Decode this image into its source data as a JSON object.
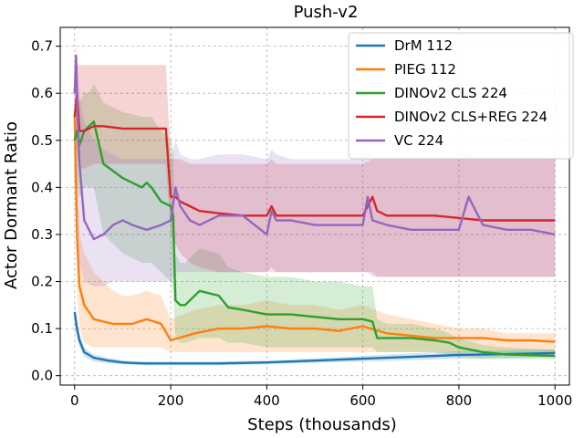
{
  "chart_data": {
    "type": "line",
    "title": "Push-v2",
    "xlabel": "Steps (thousands)",
    "ylabel": "Actor Dormant Ratio",
    "xlim": [
      -30,
      1030
    ],
    "ylim": [
      -0.02,
      0.74
    ],
    "xticks": [
      0,
      200,
      400,
      600,
      800,
      1000
    ],
    "xtick_labels": [
      "0",
      "200",
      "400",
      "600",
      "800",
      "1000"
    ],
    "yticks": [
      0.0,
      0.1,
      0.2,
      0.3,
      0.4,
      0.5,
      0.6,
      0.7
    ],
    "ytick_labels": [
      "0.0",
      "0.1",
      "0.2",
      "0.3",
      "0.4",
      "0.5",
      "0.6",
      "0.7"
    ],
    "grid": true,
    "legend_position": "top-right",
    "series": [
      {
        "name": "DrM 112",
        "color": "#1f77b4",
        "x": [
          0,
          5,
          10,
          20,
          40,
          70,
          100,
          120,
          150,
          200,
          300,
          400,
          500,
          600,
          700,
          800,
          900,
          1000
        ],
        "y": [
          0.135,
          0.1,
          0.075,
          0.05,
          0.038,
          0.032,
          0.028,
          0.027,
          0.026,
          0.026,
          0.026,
          0.028,
          0.032,
          0.036,
          0.04,
          0.044,
          0.046,
          0.048
        ],
        "lower": [
          0.1,
          0.08,
          0.06,
          0.04,
          0.03,
          0.026,
          0.024,
          0.023,
          0.022,
          0.022,
          0.022,
          0.024,
          0.027,
          0.03,
          0.033,
          0.036,
          0.038,
          0.04
        ],
        "upper": [
          0.16,
          0.12,
          0.09,
          0.06,
          0.045,
          0.038,
          0.033,
          0.031,
          0.03,
          0.03,
          0.03,
          0.032,
          0.037,
          0.042,
          0.047,
          0.052,
          0.054,
          0.056
        ]
      },
      {
        "name": "PIEG 112",
        "color": "#ff7f0e",
        "x": [
          0,
          5,
          10,
          20,
          40,
          60,
          80,
          100,
          120,
          150,
          180,
          200,
          250,
          300,
          350,
          400,
          450,
          500,
          550,
          600,
          650,
          700,
          750,
          800,
          850,
          900,
          950,
          1000
        ],
        "y": [
          0.55,
          0.3,
          0.19,
          0.15,
          0.12,
          0.115,
          0.11,
          0.11,
          0.11,
          0.12,
          0.11,
          0.075,
          0.09,
          0.1,
          0.1,
          0.105,
          0.1,
          0.1,
          0.095,
          0.105,
          0.09,
          0.085,
          0.08,
          0.08,
          0.08,
          0.075,
          0.075,
          0.072
        ],
        "lower": [
          0.4,
          0.18,
          0.1,
          0.07,
          0.06,
          0.06,
          0.06,
          0.06,
          0.06,
          0.06,
          0.06,
          0.05,
          0.05,
          0.05,
          0.05,
          0.05,
          0.05,
          0.05,
          0.05,
          0.05,
          0.05,
          0.05,
          0.05,
          0.05,
          0.05,
          0.05,
          0.05,
          0.05
        ],
        "upper": [
          0.62,
          0.45,
          0.3,
          0.26,
          0.22,
          0.2,
          0.18,
          0.17,
          0.17,
          0.18,
          0.17,
          0.12,
          0.14,
          0.15,
          0.15,
          0.16,
          0.15,
          0.15,
          0.14,
          0.15,
          0.13,
          0.12,
          0.11,
          0.1,
          0.1,
          0.09,
          0.09,
          0.09
        ]
      },
      {
        "name": "DINOv2 CLS 224",
        "color": "#2ca02c",
        "x": [
          0,
          5,
          10,
          20,
          30,
          40,
          60,
          100,
          140,
          150,
          160,
          180,
          200,
          205,
          210,
          220,
          230,
          260,
          300,
          320,
          350,
          400,
          450,
          500,
          550,
          600,
          620,
          630,
          650,
          700,
          750,
          780,
          800,
          850,
          900,
          1000
        ],
        "y": [
          0.5,
          0.52,
          0.49,
          0.52,
          0.53,
          0.54,
          0.45,
          0.42,
          0.4,
          0.41,
          0.4,
          0.37,
          0.36,
          0.34,
          0.16,
          0.15,
          0.15,
          0.18,
          0.17,
          0.145,
          0.14,
          0.13,
          0.13,
          0.125,
          0.12,
          0.12,
          0.115,
          0.08,
          0.08,
          0.08,
          0.075,
          0.07,
          0.06,
          0.05,
          0.045,
          0.042
        ],
        "lower": [
          0.4,
          0.42,
          0.38,
          0.4,
          0.4,
          0.4,
          0.3,
          0.26,
          0.24,
          0.24,
          0.24,
          0.22,
          0.2,
          0.18,
          0.08,
          0.07,
          0.07,
          0.08,
          0.08,
          0.07,
          0.07,
          0.06,
          0.06,
          0.06,
          0.06,
          0.06,
          0.06,
          0.05,
          0.05,
          0.05,
          0.05,
          0.045,
          0.04,
          0.035,
          0.035,
          0.035
        ],
        "upper": [
          0.58,
          0.6,
          0.58,
          0.6,
          0.6,
          0.62,
          0.58,
          0.56,
          0.55,
          0.55,
          0.55,
          0.52,
          0.5,
          0.48,
          0.26,
          0.24,
          0.24,
          0.27,
          0.26,
          0.23,
          0.22,
          0.21,
          0.21,
          0.2,
          0.2,
          0.19,
          0.19,
          0.12,
          0.11,
          0.11,
          0.1,
          0.09,
          0.08,
          0.065,
          0.06,
          0.055
        ]
      },
      {
        "name": "DINOv2 CLS+REG 224",
        "color": "#d62728",
        "x": [
          0,
          5,
          10,
          20,
          40,
          60,
          100,
          150,
          190,
          200,
          210,
          220,
          240,
          260,
          300,
          350,
          400,
          410,
          420,
          450,
          500,
          550,
          600,
          620,
          630,
          650,
          700,
          750,
          800,
          850,
          900,
          950,
          1000
        ],
        "y": [
          0.55,
          0.6,
          0.52,
          0.52,
          0.53,
          0.53,
          0.525,
          0.525,
          0.525,
          0.38,
          0.38,
          0.37,
          0.36,
          0.35,
          0.345,
          0.34,
          0.34,
          0.36,
          0.34,
          0.34,
          0.34,
          0.34,
          0.34,
          0.38,
          0.35,
          0.34,
          0.34,
          0.34,
          0.335,
          0.33,
          0.33,
          0.33,
          0.33
        ],
        "lower": [
          0.45,
          0.48,
          0.44,
          0.44,
          0.45,
          0.45,
          0.45,
          0.45,
          0.45,
          0.3,
          0.28,
          0.26,
          0.24,
          0.23,
          0.22,
          0.22,
          0.22,
          0.23,
          0.22,
          0.22,
          0.22,
          0.22,
          0.22,
          0.22,
          0.21,
          0.21,
          0.21,
          0.21,
          0.21,
          0.21,
          0.21,
          0.21,
          0.21
        ],
        "upper": [
          0.62,
          0.66,
          0.66,
          0.66,
          0.66,
          0.66,
          0.66,
          0.66,
          0.66,
          0.46,
          0.46,
          0.46,
          0.45,
          0.45,
          0.45,
          0.45,
          0.45,
          0.46,
          0.45,
          0.45,
          0.45,
          0.45,
          0.45,
          0.46,
          0.46,
          0.46,
          0.46,
          0.46,
          0.46,
          0.46,
          0.46,
          0.46,
          0.46
        ]
      },
      {
        "name": "VC 224",
        "color": "#9467bd",
        "x": [
          0,
          3,
          6,
          10,
          20,
          40,
          60,
          80,
          100,
          120,
          150,
          180,
          200,
          210,
          220,
          240,
          260,
          300,
          350,
          400,
          410,
          420,
          450,
          500,
          550,
          600,
          610,
          620,
          650,
          700,
          750,
          800,
          820,
          850,
          900,
          950,
          1000
        ],
        "y": [
          0.6,
          0.68,
          0.55,
          0.45,
          0.33,
          0.29,
          0.3,
          0.32,
          0.33,
          0.32,
          0.31,
          0.32,
          0.33,
          0.4,
          0.36,
          0.33,
          0.32,
          0.34,
          0.34,
          0.3,
          0.35,
          0.33,
          0.33,
          0.32,
          0.32,
          0.32,
          0.38,
          0.33,
          0.32,
          0.31,
          0.31,
          0.31,
          0.38,
          0.32,
          0.31,
          0.31,
          0.3
        ],
        "lower": [
          0.4,
          0.42,
          0.32,
          0.24,
          0.2,
          0.19,
          0.19,
          0.2,
          0.2,
          0.2,
          0.2,
          0.2,
          0.2,
          0.22,
          0.22,
          0.22,
          0.22,
          0.22,
          0.22,
          0.22,
          0.22,
          0.22,
          0.22,
          0.22,
          0.22,
          0.22,
          0.22,
          0.21,
          0.21,
          0.21,
          0.21,
          0.21,
          0.21,
          0.21,
          0.21,
          0.21,
          0.21
        ],
        "upper": [
          0.66,
          0.7,
          0.65,
          0.6,
          0.54,
          0.5,
          0.48,
          0.47,
          0.46,
          0.46,
          0.46,
          0.46,
          0.46,
          0.5,
          0.47,
          0.46,
          0.46,
          0.47,
          0.47,
          0.46,
          0.48,
          0.47,
          0.46,
          0.46,
          0.46,
          0.46,
          0.48,
          0.46,
          0.46,
          0.46,
          0.46,
          0.46,
          0.47,
          0.46,
          0.46,
          0.46,
          0.46
        ]
      }
    ]
  }
}
